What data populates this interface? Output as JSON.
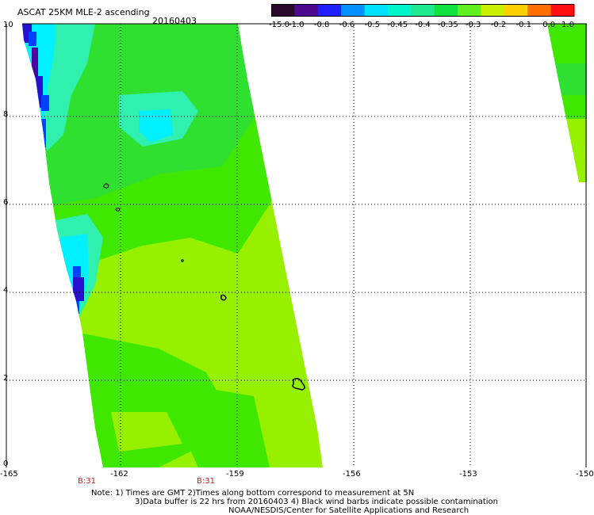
{
  "header": {
    "title": "ASCAT 25KM MLE-2 ascending",
    "date": "20160403"
  },
  "colorbar": {
    "labels": [
      "-15.0",
      "-1.0",
      "-0.8",
      "-0.6",
      "-0.5",
      "-0.45",
      "-0.4",
      "-0.35",
      "-0.3",
      "-0.2",
      "-0.1",
      "0.0",
      "1.0"
    ],
    "colors": [
      "#2a0a2a",
      "#4b0a8c",
      "#2020ff",
      "#0090ff",
      "#00e0ff",
      "#00f5c8",
      "#20e890",
      "#10e040",
      "#60f020",
      "#c8f000",
      "#ffd000",
      "#ff7000",
      "#ff1010"
    ]
  },
  "map": {
    "y_ticks": [
      "10",
      "8",
      "6",
      "4",
      "2",
      "0"
    ],
    "x_ticks": [
      "-165",
      "-162",
      "-159",
      "-156",
      "-153",
      "-150"
    ],
    "time_labels": [
      "B:31",
      "B:31"
    ],
    "swath_colors": {
      "bright_green": "#96f000",
      "green": "#40e800",
      "mid_green": "#30e030",
      "aqua": "#30f0b0",
      "cyan": "#00f0ff",
      "blue": "#0040ff",
      "dark_blue": "#2810d0",
      "purple": "#5000a0"
    }
  },
  "footer": {
    "note_line1": "Note:  1) Times are GMT 2)Times along bottom correspond to measurement at 5N",
    "note_line2": "3)Data buffer is 22 hrs from 20160403 4) Black wind barbs indicate possible contamination",
    "credit": "NOAA/NESDIS/Center for Satellite Applications and Research"
  }
}
